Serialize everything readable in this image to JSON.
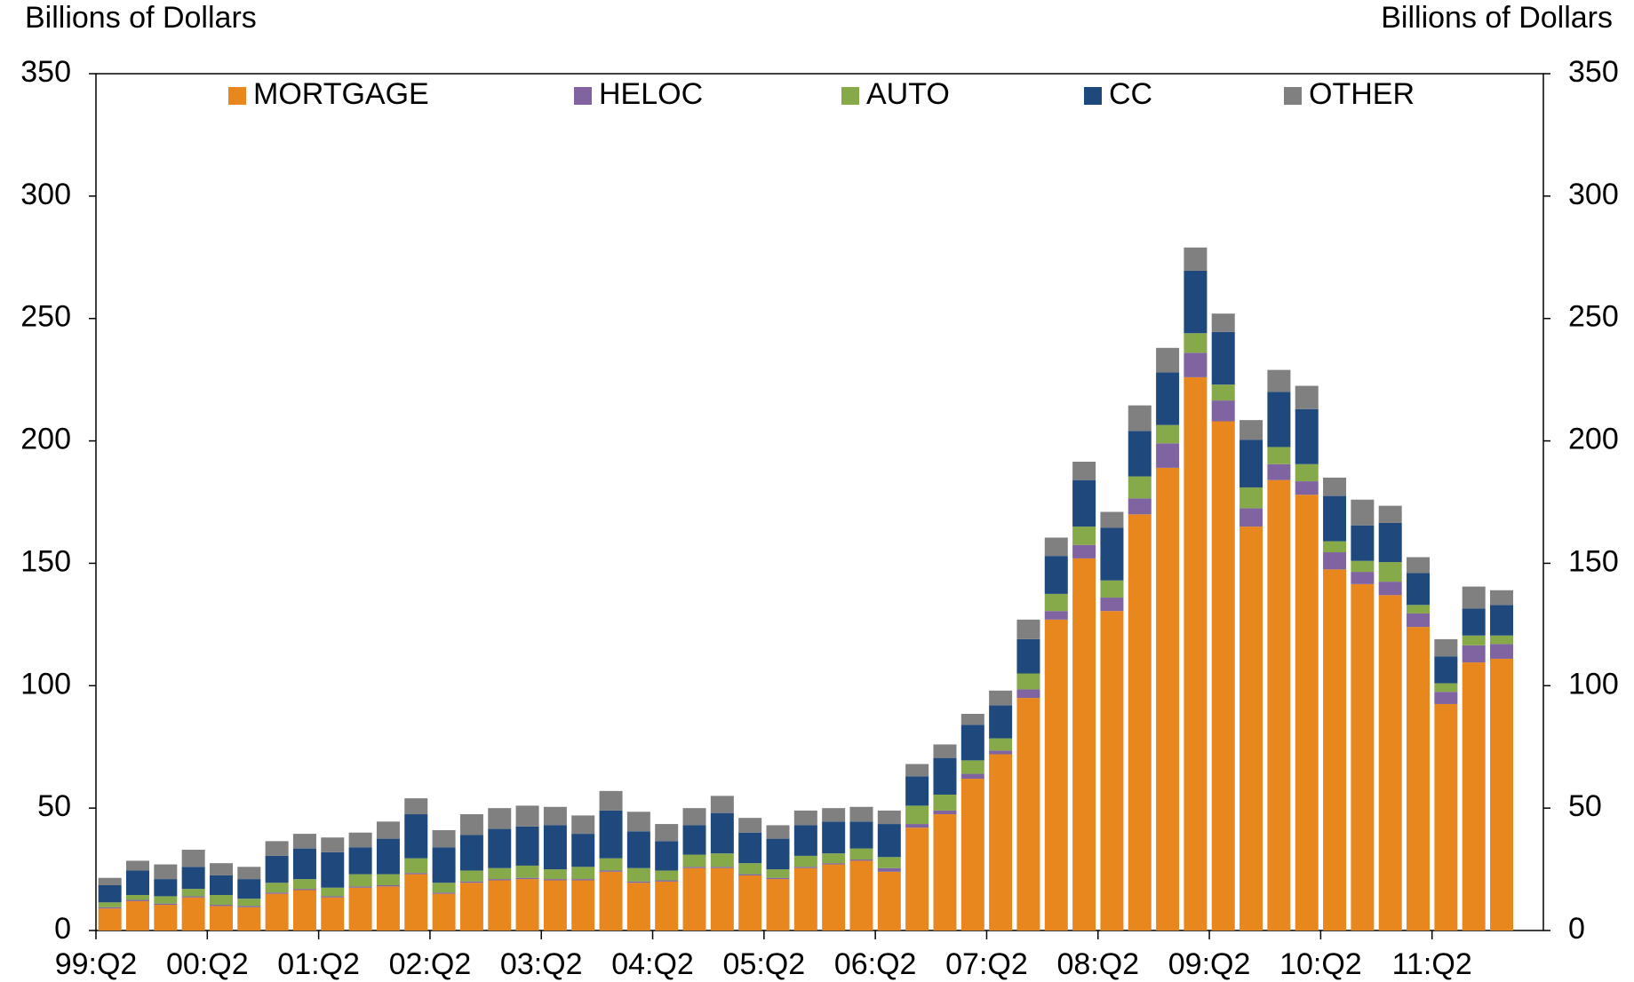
{
  "chart_data": {
    "type": "stacked-bar",
    "y_label": "Billions of Dollars",
    "y2_label": "Billions of Dollars",
    "categories": [
      "99:Q2",
      null,
      null,
      null,
      "00:Q2",
      null,
      null,
      null,
      "01:Q2",
      null,
      null,
      null,
      "02:Q2",
      null,
      null,
      null,
      "03:Q2",
      null,
      null,
      null,
      "04:Q2",
      null,
      null,
      null,
      "05:Q2",
      null,
      null,
      null,
      "06:Q2",
      null,
      null,
      null,
      "07:Q2",
      null,
      null,
      null,
      "08:Q2",
      null,
      null,
      null,
      "09:Q2",
      null,
      null,
      null,
      "10:Q2",
      null,
      null,
      null,
      "11:Q2",
      null,
      null,
      null
    ],
    "series": [
      {
        "name": "MORTGAGE",
        "color": "#E8871E",
        "values": [
          9,
          12,
          10.5,
          13.5,
          10,
          9.5,
          15,
          16.5,
          13.5,
          17.5,
          18,
          23,
          15,
          19.5,
          20.5,
          21,
          20.5,
          20.5,
          24,
          19.5,
          20,
          25.5,
          25.5,
          22.5,
          21,
          25.5,
          27,
          28.5,
          24,
          42,
          47.5,
          62,
          72,
          95,
          127,
          152,
          130.5,
          170,
          189,
          226,
          208,
          165,
          184,
          178,
          147.5,
          141.5,
          137,
          124,
          92.5,
          109.5,
          111,
          null
        ]
      },
      {
        "name": "HELOC",
        "color": "#8064A2",
        "values": [
          0.5,
          0.5,
          0.5,
          0.5,
          0.5,
          0.5,
          0.5,
          0.5,
          0.5,
          0.5,
          0.5,
          0.5,
          0.5,
          0.5,
          0.5,
          0.5,
          0.5,
          0.5,
          0.5,
          0.5,
          0.5,
          0.5,
          0.5,
          0.5,
          0.5,
          0.5,
          0.5,
          0.5,
          1.5,
          1.5,
          1.5,
          2,
          1.5,
          3.5,
          3.5,
          5.5,
          5.5,
          6.5,
          10,
          10,
          8.5,
          7.5,
          6.5,
          5.5,
          7,
          5,
          5.5,
          5.5,
          5,
          7,
          6,
          null
        ]
      },
      {
        "name": "AUTO",
        "color": "#86A94A",
        "values": [
          2,
          2,
          3,
          3,
          4,
          3,
          4,
          4,
          3.5,
          5,
          4.5,
          6,
          4,
          4.5,
          4.5,
          5,
          4,
          5,
          5,
          5.5,
          4,
          5,
          5.5,
          4.5,
          3.5,
          4.5,
          4,
          4.5,
          4.5,
          7.5,
          6.5,
          5.5,
          5,
          6.5,
          7,
          7.5,
          7,
          9,
          7.5,
          8,
          6.5,
          8.5,
          7,
          7,
          4.5,
          4.5,
          8,
          3.5,
          3.5,
          4,
          3.5,
          null
        ]
      },
      {
        "name": "CC",
        "color": "#1F497D",
        "values": [
          7,
          10,
          7,
          9,
          8,
          8,
          11,
          12.5,
          14.5,
          11,
          14.5,
          18,
          14.5,
          14.5,
          16,
          16,
          18,
          13.5,
          19.5,
          15,
          12,
          12,
          16.5,
          12.5,
          12.5,
          12.5,
          13,
          11,
          13.5,
          12,
          15,
          14.5,
          13.5,
          14,
          15.5,
          19,
          21.5,
          18.5,
          21.5,
          25.5,
          21.5,
          19.5,
          22.5,
          22.5,
          18.5,
          14.5,
          16,
          13,
          11,
          11,
          12.5,
          null
        ]
      },
      {
        "name": "OTHER",
        "color": "#808080",
        "values": [
          3,
          4,
          6,
          7,
          5,
          5,
          6,
          6,
          6,
          6,
          7,
          6.5,
          7,
          8.5,
          8.5,
          8.5,
          7.5,
          7.5,
          8,
          8,
          7,
          7,
          7,
          6,
          5.5,
          6,
          5.5,
          6,
          5.5,
          5,
          5.5,
          4.5,
          6,
          8,
          7.5,
          7.5,
          6.5,
          10.5,
          10,
          9.5,
          7.5,
          8,
          9,
          9.5,
          7.5,
          10.5,
          7,
          6.5,
          7,
          9,
          6,
          null
        ]
      }
    ],
    "ylim": [
      0,
      350
    ],
    "yticks": [
      0,
      50,
      100,
      150,
      200,
      250,
      300,
      350
    ],
    "y2lim": [
      0,
      350
    ],
    "y2ticks": [
      0,
      50,
      100,
      150,
      200,
      250,
      300,
      350
    ],
    "legend": "top"
  }
}
